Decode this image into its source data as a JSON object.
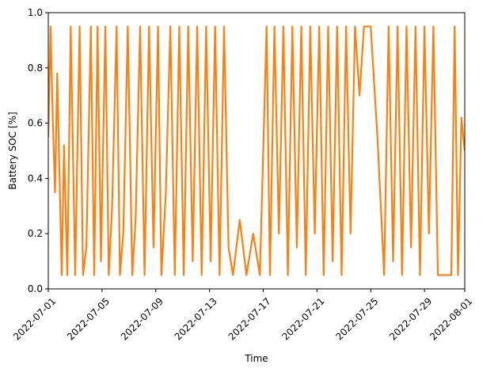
{
  "chart_data": {
    "type": "line",
    "title": "",
    "xlabel": "Time",
    "ylabel": "Battery SOC [%]",
    "x_range": [
      "2022-07-01",
      "2022-08-01"
    ],
    "ylim": [
      0.0,
      1.0
    ],
    "x_tick_labels": [
      "2022-07-01",
      "2022-07-05",
      "2022-07-09",
      "2022-07-13",
      "2022-07-17",
      "2022-07-21",
      "2022-07-25",
      "2022-07-29",
      "2022-08-01"
    ],
    "y_tick_labels": [
      "0.0",
      "0.2",
      "0.4",
      "0.6",
      "0.8",
      "1.0"
    ],
    "y_ticks": [
      0.0,
      0.2,
      0.4,
      0.6,
      0.8,
      1.0
    ],
    "grid": false,
    "legend": "none",
    "line_color": "#ff7f0e",
    "series": [
      {
        "x": [
          "2022-07-01 00:00",
          "2022-07-01 04:00",
          "2022-07-01 08:00",
          "2022-07-01 12:00",
          "2022-07-01 16:00",
          "2022-07-02 00:00",
          "2022-07-02 04:00",
          "2022-07-02 10:00",
          "2022-07-02 16:00",
          "2022-07-03 00:00",
          "2022-07-03 08:00",
          "2022-07-03 14:00",
          "2022-07-03 20:00",
          "2022-07-04 04:00",
          "2022-07-04 10:00",
          "2022-07-04 16:00",
          "2022-07-04 22:00",
          "2022-07-05 06:00",
          "2022-07-05 12:00",
          "2022-07-05 18:00",
          "2022-07-06 02:00",
          "2022-07-06 08:00",
          "2022-07-06 14:00",
          "2022-07-06 22:00",
          "2022-07-07 06:00",
          "2022-07-07 12:00",
          "2022-07-07 20:00",
          "2022-07-08 04:00",
          "2022-07-08 12:00",
          "2022-07-08 20:00",
          "2022-07-09 04:00",
          "2022-07-09 10:00",
          "2022-07-09 18:00",
          "2022-07-10 02:00",
          "2022-07-10 10:00",
          "2022-07-10 18:00",
          "2022-07-11 02:00",
          "2022-07-11 10:00",
          "2022-07-11 18:00",
          "2022-07-12 02:00",
          "2022-07-12 10:00",
          "2022-07-12 18:00",
          "2022-07-13 02:00",
          "2022-07-13 10:00",
          "2022-07-13 18:00",
          "2022-07-14 02:00",
          "2022-07-14 10:00",
          "2022-07-14 18:00",
          "2022-07-15 06:00",
          "2022-07-15 18:00",
          "2022-07-16 06:00",
          "2022-07-16 18:00",
          "2022-07-17 06:00",
          "2022-07-17 12:00",
          "2022-07-17 20:00",
          "2022-07-18 04:00",
          "2022-07-18 12:00",
          "2022-07-18 20:00",
          "2022-07-19 04:00",
          "2022-07-19 12:00",
          "2022-07-19 20:00",
          "2022-07-20 04:00",
          "2022-07-20 12:00",
          "2022-07-20 20:00",
          "2022-07-21 04:00",
          "2022-07-21 12:00",
          "2022-07-21 20:00",
          "2022-07-22 04:00",
          "2022-07-22 12:00",
          "2022-07-22 20:00",
          "2022-07-23 04:00",
          "2022-07-23 12:00",
          "2022-07-23 20:00",
          "2022-07-24 04:00",
          "2022-07-24 12:00",
          "2022-07-25 00:00",
          "2022-07-25 12:00",
          "2022-07-26 00:00",
          "2022-07-26 08:00",
          "2022-07-26 16:00",
          "2022-07-27 00:00",
          "2022-07-27 08:00",
          "2022-07-27 16:00",
          "2022-07-28 00:00",
          "2022-07-28 08:00",
          "2022-07-28 16:00",
          "2022-07-29 00:00",
          "2022-07-29 08:00",
          "2022-07-29 16:00",
          "2022-07-30 00:00",
          "2022-07-30 12:00",
          "2022-07-31 00:00",
          "2022-07-31 06:00",
          "2022-07-31 12:00",
          "2022-07-31 18:00",
          "2022-08-01 00:00"
        ],
        "y": [
          0.55,
          0.95,
          0.62,
          0.35,
          0.78,
          0.05,
          0.52,
          0.05,
          0.95,
          0.05,
          0.95,
          0.05,
          0.15,
          0.95,
          0.05,
          0.95,
          0.1,
          0.95,
          0.05,
          0.3,
          0.95,
          0.05,
          0.2,
          0.95,
          0.05,
          0.25,
          0.95,
          0.05,
          0.95,
          0.15,
          0.95,
          0.05,
          0.35,
          0.95,
          0.05,
          0.95,
          0.05,
          0.95,
          0.1,
          0.95,
          0.05,
          0.95,
          0.1,
          0.95,
          0.05,
          0.95,
          0.15,
          0.05,
          0.25,
          0.05,
          0.2,
          0.05,
          0.95,
          0.05,
          0.95,
          0.2,
          0.95,
          0.05,
          0.95,
          0.15,
          0.95,
          0.05,
          0.95,
          0.2,
          0.95,
          0.05,
          0.95,
          0.1,
          0.95,
          0.05,
          0.95,
          0.2,
          0.95,
          0.7,
          0.95,
          0.95,
          0.55,
          0.05,
          0.95,
          0.1,
          0.95,
          0.05,
          0.95,
          0.15,
          0.95,
          0.05,
          0.95,
          0.2,
          0.95,
          0.05,
          0.05,
          0.05,
          0.95,
          0.05,
          0.62,
          0.5
        ]
      }
    ]
  }
}
